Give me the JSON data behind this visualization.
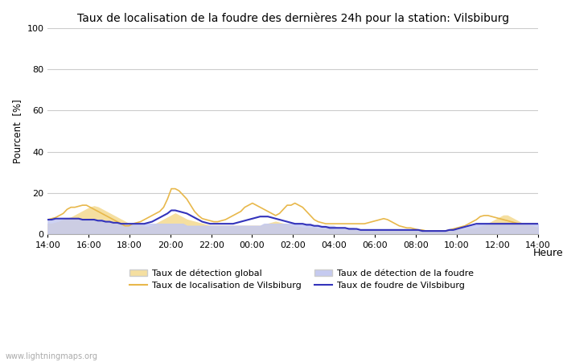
{
  "title": "Taux de localisation de la foudre des dernières 24h pour la station: Vilsbiburg",
  "xlabel": "Heure",
  "ylabel": "Pourcent  [%]",
  "ylim": [
    0,
    100
  ],
  "yticks": [
    0,
    20,
    40,
    60,
    80,
    100
  ],
  "background_color": "#ffffff",
  "plot_bg_color": "#ffffff",
  "watermark": "www.lightningmaps.org",
  "legend": [
    {
      "label": "Taux de détection global",
      "type": "fill",
      "color": "#f5dfa0"
    },
    {
      "label": "Taux de localisation de Vilsbiburg",
      "type": "line",
      "color": "#e8b84b"
    },
    {
      "label": "Taux de détection de la foudre",
      "type": "fill",
      "color": "#c5caf0"
    },
    {
      "label": "Taux de foudre de Vilsbiburg",
      "type": "line",
      "color": "#3333bb"
    }
  ],
  "x_labels": [
    "14:00",
    "16:00",
    "18:00",
    "20:00",
    "22:00",
    "00:00",
    "02:00",
    "04:00",
    "06:00",
    "08:00",
    "10:00",
    "12:00",
    "14:00"
  ],
  "global_detect": [
    5,
    5,
    5.5,
    6,
    7,
    7.5,
    8,
    9,
    10,
    11,
    12,
    13,
    13.5,
    13,
    12,
    11,
    10,
    9,
    8,
    7,
    6,
    5,
    4.5,
    4,
    4,
    3.5,
    3.5,
    4,
    5,
    6,
    7,
    8,
    9,
    10,
    9,
    8,
    7,
    6.5,
    6,
    5.5,
    5,
    4.5,
    4,
    4,
    4,
    4,
    4,
    4,
    4,
    4,
    4,
    4,
    4,
    4,
    4,
    4,
    4.5,
    5,
    5.5,
    6,
    5.5,
    5,
    4.5,
    4,
    3.5,
    3.5,
    3,
    3,
    3,
    3,
    2.5,
    2.5,
    2.5,
    2.5,
    2,
    2,
    2,
    2,
    2,
    2,
    1.5,
    1.5,
    1.5,
    1.5,
    1.5,
    1.5,
    1.5,
    1.5,
    1.5,
    1.5,
    1.5,
    1.5,
    1.5,
    1.5,
    1.5,
    1.5,
    1.5,
    1.5,
    1.5,
    1.5,
    1.5,
    1.5,
    1.5,
    1.5,
    1.5,
    2,
    2,
    2,
    2,
    2.5,
    2.5,
    3,
    3.5,
    4,
    5,
    6,
    7,
    8,
    9,
    9,
    8,
    7,
    6,
    5,
    4.5,
    4,
    3.5,
    3,
    2.5,
    2,
    2,
    2,
    2,
    2,
    2,
    2,
    2,
    2,
    2,
    2
  ],
  "vilsbiburg_localization": [
    7,
    7.5,
    8,
    9,
    10,
    12,
    13,
    13,
    13.5,
    14,
    14,
    13,
    12,
    11,
    10,
    9,
    8,
    7,
    6,
    5,
    4,
    4,
    5,
    5.5,
    6,
    7,
    8,
    9,
    10,
    11,
    13,
    17,
    22,
    22,
    21,
    19,
    17,
    14,
    11,
    9,
    7.5,
    7,
    6.5,
    6,
    6,
    6.5,
    7,
    8,
    9,
    10,
    11,
    13,
    14,
    15,
    14,
    13,
    12,
    11,
    10,
    9,
    10,
    12,
    14,
    14,
    15,
    14,
    13,
    11,
    9,
    7,
    6,
    5.5,
    5,
    5,
    5,
    5,
    5,
    5,
    5,
    5,
    5,
    5,
    5,
    5.5,
    6,
    6.5,
    7,
    7.5,
    7,
    6,
    5,
    4,
    3.5,
    3,
    3,
    2.5,
    2,
    2,
    1.5,
    1.5,
    1.5,
    1.5,
    1.5,
    1.5,
    2,
    2.5,
    3,
    3.5,
    4,
    5,
    6,
    7,
    8.5,
    9,
    9,
    8.5,
    8,
    7.5,
    7,
    6.5,
    6,
    5.5,
    5,
    5,
    5,
    5,
    5,
    5,
    5,
    5,
    5,
    5,
    5
  ],
  "lightning_detect": [
    7,
    7,
    7,
    7,
    7,
    7,
    7,
    7,
    7,
    7,
    7,
    7,
    7,
    7,
    7,
    6,
    6,
    5,
    5,
    5,
    5,
    5,
    5,
    5,
    5,
    5,
    5,
    5,
    5,
    5,
    5,
    5,
    5,
    5,
    5,
    5,
    4,
    4,
    4,
    4,
    4,
    4,
    4,
    4,
    4,
    4,
    4,
    4,
    4,
    4,
    4,
    4,
    4,
    4,
    4,
    4,
    5,
    5,
    5,
    5,
    5,
    5,
    5,
    5,
    5,
    5,
    5,
    5,
    5,
    4,
    4,
    4,
    4,
    4,
    4,
    3,
    3,
    3,
    3,
    3,
    2.5,
    2,
    2,
    2,
    2,
    2,
    2,
    2,
    2,
    2,
    2,
    2,
    2,
    2,
    2,
    2,
    1.5,
    1.5,
    1.5,
    1.5,
    1.5,
    1.5,
    1.5,
    1.5,
    2,
    2,
    2,
    2.5,
    3,
    3.5,
    4,
    4.5,
    5,
    5,
    5,
    5,
    5,
    5,
    5,
    5,
    5,
    5,
    5,
    5,
    5,
    5,
    5,
    5,
    5
  ],
  "vilsbiburg_lightning": [
    7,
    7,
    7.5,
    7.5,
    7.5,
    7.5,
    7.5,
    7.5,
    7.5,
    7,
    7,
    7,
    7,
    6.5,
    6.5,
    6,
    6,
    5.5,
    5.5,
    5,
    5,
    5,
    5,
    5,
    5,
    5,
    5.5,
    6,
    7,
    8,
    9,
    10,
    11.5,
    11.5,
    11,
    10.5,
    10,
    9,
    8,
    7,
    6,
    5.5,
    5,
    5,
    5,
    5,
    5,
    5,
    5,
    5.5,
    6,
    6.5,
    7,
    7.5,
    8,
    8.5,
    8.5,
    8.5,
    8,
    7.5,
    7,
    6.5,
    6,
    5.5,
    5,
    5,
    5,
    4.5,
    4.5,
    4,
    4,
    3.5,
    3.5,
    3,
    3,
    3,
    3,
    3,
    2.5,
    2.5,
    2.5,
    2,
    2,
    2,
    2,
    2,
    2,
    2,
    2,
    2,
    2,
    2,
    2,
    2,
    2,
    2,
    2,
    1.5,
    1.5,
    1.5,
    1.5,
    1.5,
    1.5,
    1.5,
    2,
    2,
    2.5,
    3,
    3.5,
    4,
    4.5,
    5,
    5,
    5,
    5,
    5,
    5,
    5,
    5,
    5,
    5,
    5,
    5,
    5,
    5,
    5,
    5,
    5
  ]
}
